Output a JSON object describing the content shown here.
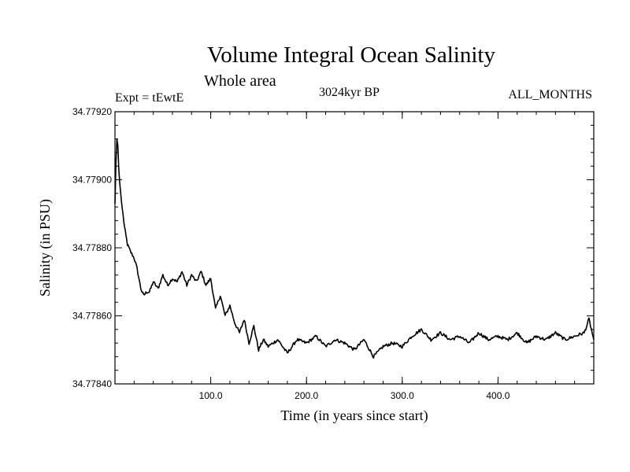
{
  "chart_data": {
    "type": "line",
    "title": "Volume Integral Ocean Salinity",
    "subtitle": "Whole area",
    "annotations": {
      "left": "Expt = tEwtE",
      "center": "3024kyr BP",
      "right": "ALL_MONTHS"
    },
    "xlabel": "Time (in years since start)",
    "ylabel": "Salinity (in PSU)",
    "xlim": [
      0,
      500
    ],
    "ylim": [
      34.7784,
      34.7792
    ],
    "x_ticks": [
      100,
      200,
      300,
      400
    ],
    "x_tick_labels": [
      "100.0",
      "200.0",
      "300.0",
      "400.0"
    ],
    "x_minor_step": 20,
    "y_ticks": [
      34.7784,
      34.7786,
      34.7788,
      34.779,
      34.7792
    ],
    "y_tick_labels": [
      "34.77840",
      "34.77860",
      "34.77880",
      "34.77900",
      "34.77920"
    ],
    "y_minor_step": 4e-05,
    "series": [
      {
        "name": "Salinity",
        "color": "#000000",
        "x": [
          0,
          1,
          2,
          3,
          4,
          5,
          7,
          10,
          13,
          16,
          20,
          23,
          25,
          27,
          30,
          33,
          36,
          40,
          45,
          50,
          55,
          60,
          65,
          70,
          75,
          80,
          85,
          90,
          95,
          100,
          105,
          110,
          115,
          120,
          125,
          130,
          135,
          140,
          145,
          150,
          155,
          160,
          170,
          180,
          190,
          200,
          210,
          220,
          230,
          240,
          250,
          260,
          270,
          280,
          290,
          300,
          310,
          320,
          330,
          340,
          350,
          360,
          370,
          380,
          390,
          400,
          410,
          420,
          430,
          440,
          450,
          460,
          470,
          480,
          490,
          495,
          500
        ],
        "values": [
          34.77893,
          34.77905,
          34.77912,
          34.7791,
          34.77903,
          34.77899,
          34.77893,
          34.77886,
          34.77881,
          34.77879,
          34.77877,
          34.77874,
          34.77871,
          34.77868,
          34.77866,
          34.77867,
          34.77867,
          34.7787,
          34.77868,
          34.77872,
          34.77869,
          34.77871,
          34.7787,
          34.77873,
          34.77869,
          34.77872,
          34.7787,
          34.77873,
          34.77869,
          34.77871,
          34.77862,
          34.77866,
          34.7786,
          34.77863,
          34.77858,
          34.77855,
          34.77859,
          34.77852,
          34.77857,
          34.7785,
          34.77853,
          34.77851,
          34.77853,
          34.77849,
          34.77853,
          34.77852,
          34.77854,
          34.77851,
          34.77853,
          34.77852,
          34.7785,
          34.77853,
          34.77848,
          34.77851,
          34.77852,
          34.77851,
          34.77854,
          34.77856,
          34.77853,
          34.77855,
          34.77853,
          34.77854,
          34.77852,
          34.77855,
          34.77853,
          34.77854,
          34.77853,
          34.77855,
          34.77852,
          34.77854,
          34.77853,
          34.77855,
          34.77853,
          34.77854,
          34.77855,
          34.77859,
          34.77853
        ]
      }
    ]
  }
}
